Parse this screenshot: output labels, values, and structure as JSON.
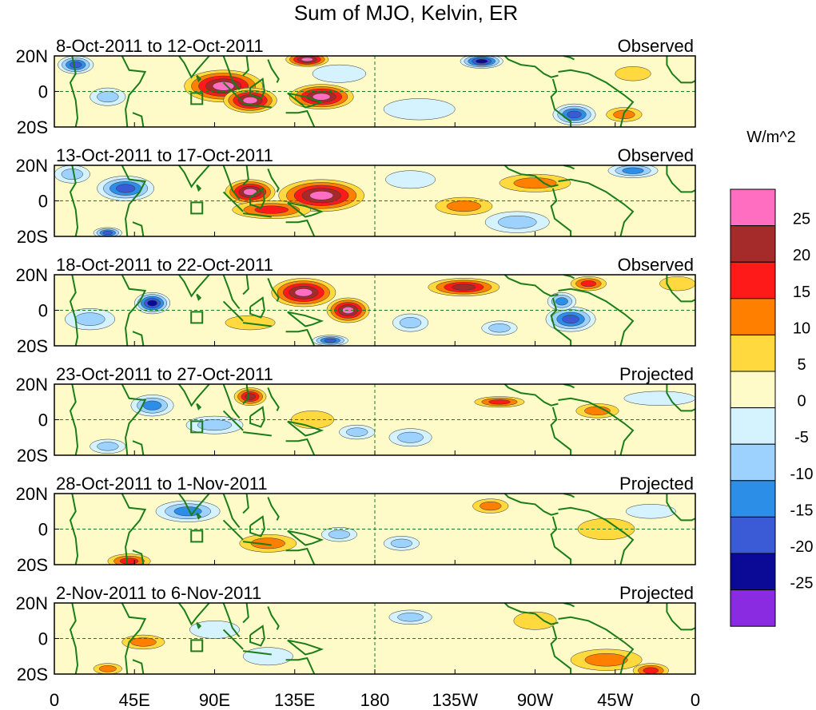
{
  "chart_data": {
    "type": "heatmap",
    "title": "Sum of MJO, Kelvin, ER",
    "colorbar": {
      "units": "W/m^2",
      "levels": [
        25,
        20,
        15,
        10,
        5,
        0,
        -5,
        -10,
        -15,
        -20,
        -25
      ],
      "colors": [
        "#ff6ec0",
        "#a52a2a",
        "#ff1a1a",
        "#ff7f00",
        "#ffd93d",
        "#fffbc8",
        "#d4f2ff",
        "#9dd2ff",
        "#2d8ee8",
        "#3a5ad6",
        "#0a0a96",
        "#8a2be2"
      ]
    },
    "x_ticks": [
      "0",
      "45E",
      "90E",
      "135E",
      "180",
      "135W",
      "90W",
      "45W",
      "0"
    ],
    "y_ticks": [
      "20N",
      "0",
      "20S"
    ],
    "panels": [
      {
        "date_range": "8-Oct-2011 to 12-Oct-2011",
        "status": "Observed"
      },
      {
        "date_range": "13-Oct-2011 to 17-Oct-2011",
        "status": "Observed"
      },
      {
        "date_range": "18-Oct-2011 to 22-Oct-2011",
        "status": "Observed"
      },
      {
        "date_range": "23-Oct-2011 to 27-Oct-2011",
        "status": "Projected"
      },
      {
        "date_range": "28-Oct-2011 to 1-Nov-2011",
        "status": "Projected"
      },
      {
        "date_range": "2-Nov-2011 to 6-Nov-2011",
        "status": "Projected"
      }
    ],
    "anomalies": [
      [
        [
          95,
          3,
          22,
          9,
          27
        ],
        [
          110,
          -5,
          15,
          7,
          25
        ],
        [
          150,
          -3,
          18,
          7,
          28
        ],
        [
          142,
          18,
          12,
          4,
          26
        ],
        [
          240,
          17,
          12,
          4,
          -25
        ],
        [
          292,
          -13,
          12,
          6,
          -22
        ],
        [
          12,
          15,
          10,
          5,
          -20
        ],
        [
          30,
          -3,
          10,
          5,
          -10
        ],
        [
          205,
          -10,
          20,
          6,
          -5
        ],
        [
          160,
          10,
          15,
          5,
          -5
        ],
        [
          325,
          10,
          10,
          4,
          5
        ],
        [
          320,
          -13,
          10,
          4,
          10
        ]
      ],
      [
        [
          110,
          5,
          14,
          7,
          27
        ],
        [
          150,
          3,
          24,
          9,
          28
        ],
        [
          122,
          -5,
          22,
          5,
          15
        ],
        [
          270,
          10,
          20,
          5,
          12
        ],
        [
          230,
          -3,
          16,
          5,
          12
        ],
        [
          40,
          7,
          16,
          7,
          -22
        ],
        [
          30,
          -18,
          8,
          3,
          -20
        ],
        [
          260,
          -12,
          18,
          6,
          -10
        ],
        [
          325,
          17,
          14,
          4,
          -15
        ],
        [
          10,
          15,
          10,
          5,
          -12
        ],
        [
          200,
          12,
          14,
          5,
          -5
        ]
      ],
      [
        [
          140,
          10,
          18,
          8,
          28
        ],
        [
          165,
          0,
          12,
          7,
          27
        ],
        [
          230,
          13,
          20,
          5,
          22
        ],
        [
          300,
          15,
          10,
          4,
          18
        ],
        [
          55,
          4,
          10,
          6,
          -28
        ],
        [
          155,
          -17,
          10,
          3,
          -20
        ],
        [
          290,
          -5,
          14,
          7,
          -22
        ],
        [
          285,
          5,
          8,
          5,
          -15
        ],
        [
          200,
          -7,
          10,
          5,
          -12
        ],
        [
          20,
          -5,
          14,
          6,
          -10
        ],
        [
          250,
          -10,
          10,
          4,
          -10
        ],
        [
          110,
          -7,
          14,
          4,
          8
        ],
        [
          350,
          15,
          10,
          4,
          8
        ]
      ],
      [
        [
          110,
          13,
          9,
          5,
          22
        ],
        [
          250,
          10,
          14,
          3,
          15
        ],
        [
          305,
          5,
          12,
          4,
          12
        ],
        [
          55,
          8,
          12,
          6,
          -15
        ],
        [
          170,
          -7,
          10,
          4,
          -10
        ],
        [
          200,
          -10,
          12,
          5,
          -13
        ],
        [
          30,
          -15,
          10,
          4,
          -10
        ],
        [
          90,
          -3,
          16,
          5,
          -10
        ],
        [
          145,
          0,
          12,
          5,
          5
        ],
        [
          340,
          12,
          20,
          4,
          -6
        ]
      ],
      [
        [
          42,
          -18,
          12,
          4,
          16
        ],
        [
          120,
          -8,
          16,
          5,
          12
        ],
        [
          245,
          13,
          10,
          4,
          12
        ],
        [
          75,
          10,
          18,
          6,
          -15
        ],
        [
          160,
          -3,
          10,
          4,
          -10
        ],
        [
          195,
          -8,
          10,
          4,
          -10
        ],
        [
          310,
          0,
          16,
          6,
          5
        ],
        [
          335,
          10,
          14,
          4,
          -6
        ]
      ],
      [
        [
          50,
          -2,
          12,
          4,
          12
        ],
        [
          30,
          -17,
          8,
          3,
          12
        ],
        [
          310,
          -12,
          20,
          6,
          10
        ],
        [
          335,
          -18,
          10,
          4,
          16
        ],
        [
          200,
          12,
          12,
          4,
          -10
        ],
        [
          120,
          -10,
          14,
          5,
          -6
        ],
        [
          270,
          10,
          12,
          5,
          5
        ],
        [
          90,
          5,
          14,
          5,
          -5
        ]
      ]
    ],
    "box_marker": {
      "lon": 80,
      "lat": -4
    }
  }
}
